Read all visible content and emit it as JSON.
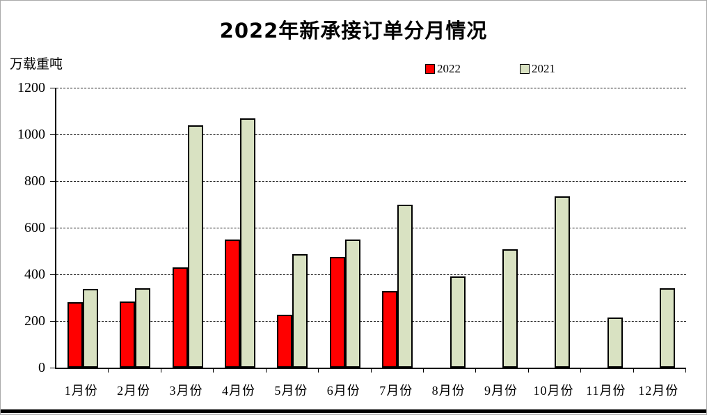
{
  "chart_data": {
    "type": "bar",
    "title": "2022年新承接订单分月情况",
    "unit_label": "万载重吨",
    "categories": [
      "1月份",
      "2月份",
      "3月份",
      "4月份",
      "5月份",
      "6月份",
      "7月份",
      "8月份",
      "9月份",
      "10月份",
      "11月份",
      "12月份"
    ],
    "series": [
      {
        "name": "2022",
        "color": "#ff0000",
        "values": [
          282,
          283,
          430,
          548,
          227,
          476,
          328,
          null,
          null,
          null,
          null,
          null
        ]
      },
      {
        "name": "2021",
        "color": "#d9e2c2",
        "values": [
          337,
          340,
          1038,
          1068,
          488,
          550,
          699,
          391,
          506,
          733,
          215,
          340
        ]
      }
    ],
    "ylim": [
      0,
      1200
    ],
    "ytick_interval": 200,
    "grid": "horizontal-dashed",
    "legend_position": "top",
    "axis_color": "#000000",
    "bar_border_color": "#000000"
  }
}
